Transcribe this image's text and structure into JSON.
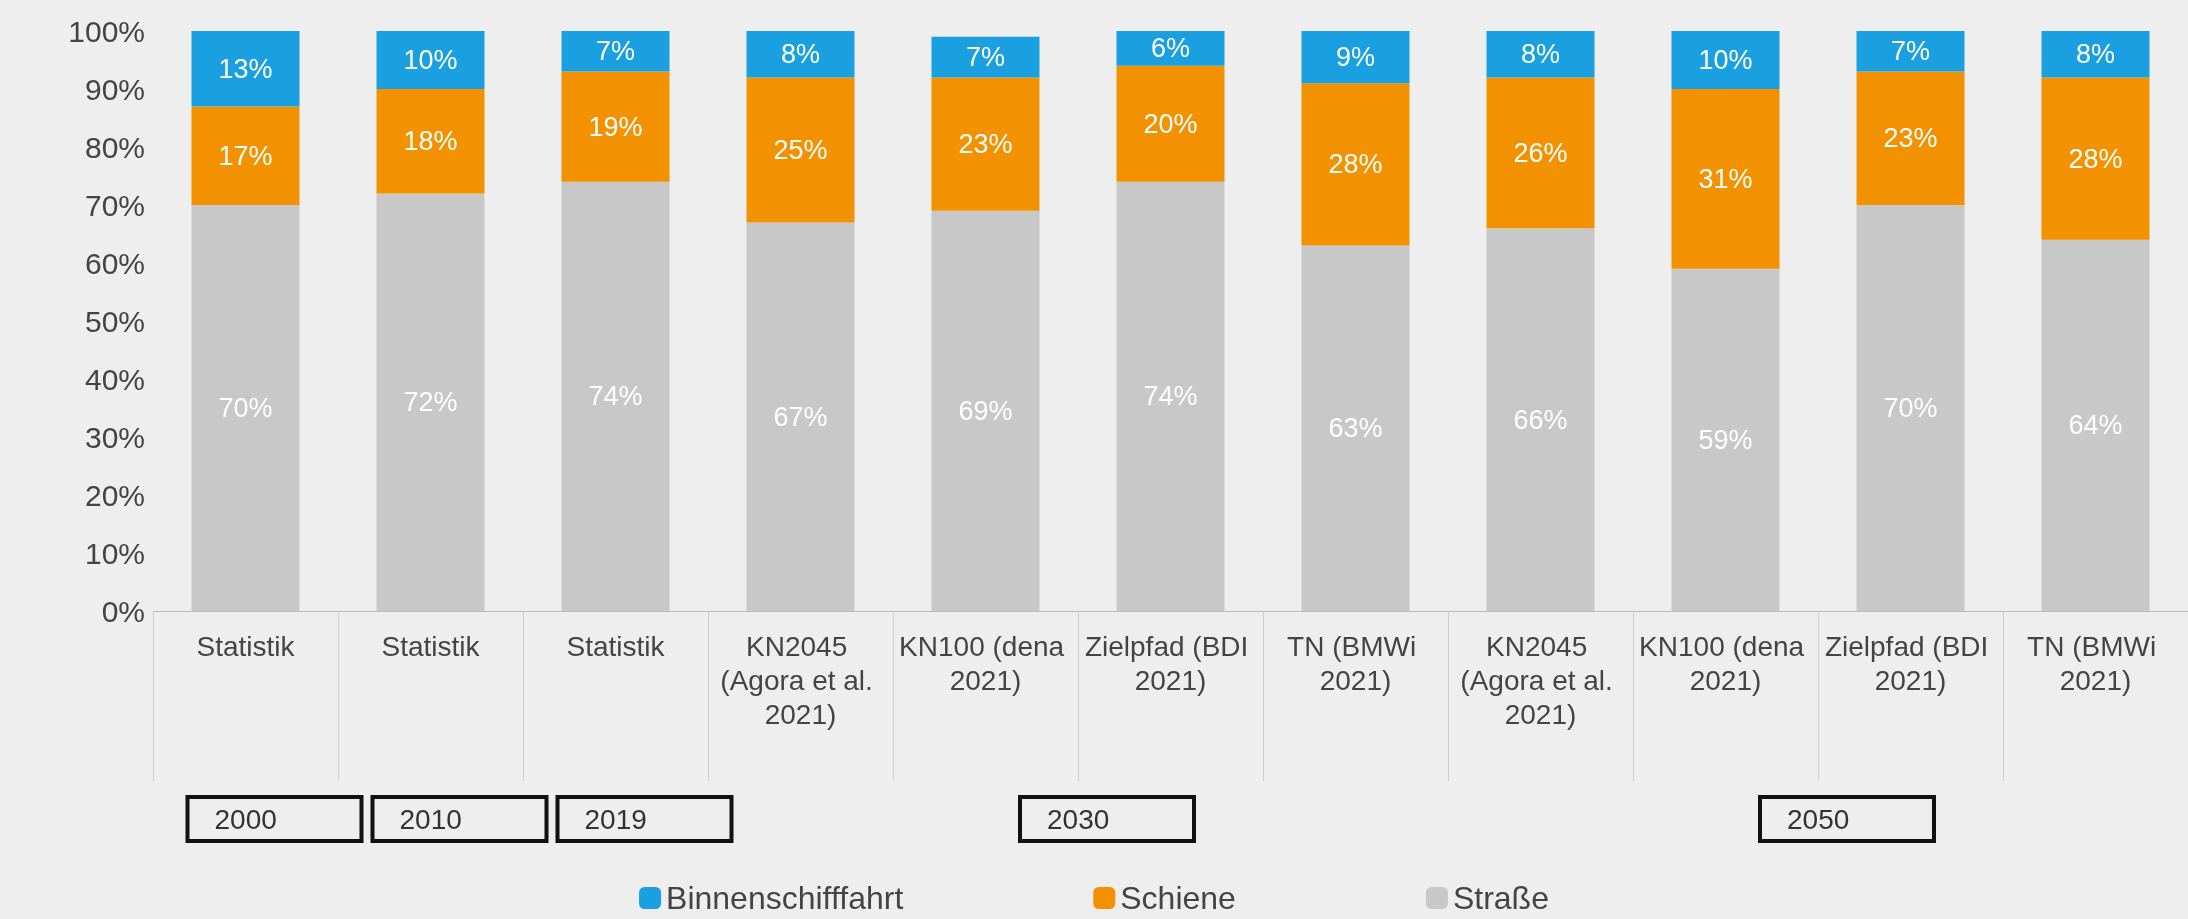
{
  "chart_data": {
    "type": "bar",
    "stacked": true,
    "legend": "bottom",
    "grid": false,
    "categories": [
      "Statistik",
      "Statistik",
      "Statistik",
      "KN2045 (Agora et al. 2021)",
      "KN100 (dena 2021)",
      "Zielpfad (BDI 2021)",
      "TN (BMWi 2021)",
      "KN2045 (Agora et al. 2021)",
      "KN100 (dena 2021)",
      "Zielpfad (BDI 2021)",
      "TN (BMWi 2021)"
    ],
    "series": [
      {
        "name": "Straße",
        "color": "#c8c8c8",
        "values": [
          70,
          72,
          74,
          67,
          69,
          74,
          63,
          66,
          59,
          70,
          64
        ],
        "value_labels": [
          "70%",
          "72%",
          "74%",
          "67%",
          "69%",
          "74%",
          "63%",
          "66%",
          "59%",
          "70%",
          "64%"
        ]
      },
      {
        "name": "Schiene",
        "color": "#f39200",
        "values": [
          17,
          18,
          19,
          25,
          23,
          20,
          28,
          26,
          31,
          23,
          28
        ],
        "value_labels": [
          "17%",
          "18%",
          "19%",
          "25%",
          "23%",
          "20%",
          "28%",
          "26%",
          "31%",
          "23%",
          "28%"
        ]
      },
      {
        "name": "Binnenschifffahrt",
        "color": "#1aa0e0",
        "values": [
          13,
          10,
          7,
          8,
          7,
          6,
          9,
          8,
          10,
          7,
          8
        ],
        "value_labels": [
          "13%",
          "10%",
          "7%",
          "8%",
          "7%",
          "6%",
          "9%",
          "8%",
          "10%",
          "7%",
          "8%"
        ]
      }
    ],
    "ylim": [
      0,
      100
    ],
    "yticks": [
      {
        "value": 0,
        "label": "0%"
      },
      {
        "value": 10,
        "label": "10%"
      },
      {
        "value": 20,
        "label": "20%"
      },
      {
        "value": 30,
        "label": "30%"
      },
      {
        "value": 40,
        "label": "40%"
      },
      {
        "value": 50,
        "label": "50%"
      },
      {
        "value": 60,
        "label": "60%"
      },
      {
        "value": 70,
        "label": "70%"
      },
      {
        "value": 80,
        "label": "80%"
      },
      {
        "value": 90,
        "label": "90%"
      },
      {
        "value": 100,
        "label": "100%"
      }
    ],
    "annotations": [
      "2000",
      "2010",
      "2019",
      "2030",
      "2050"
    ]
  }
}
